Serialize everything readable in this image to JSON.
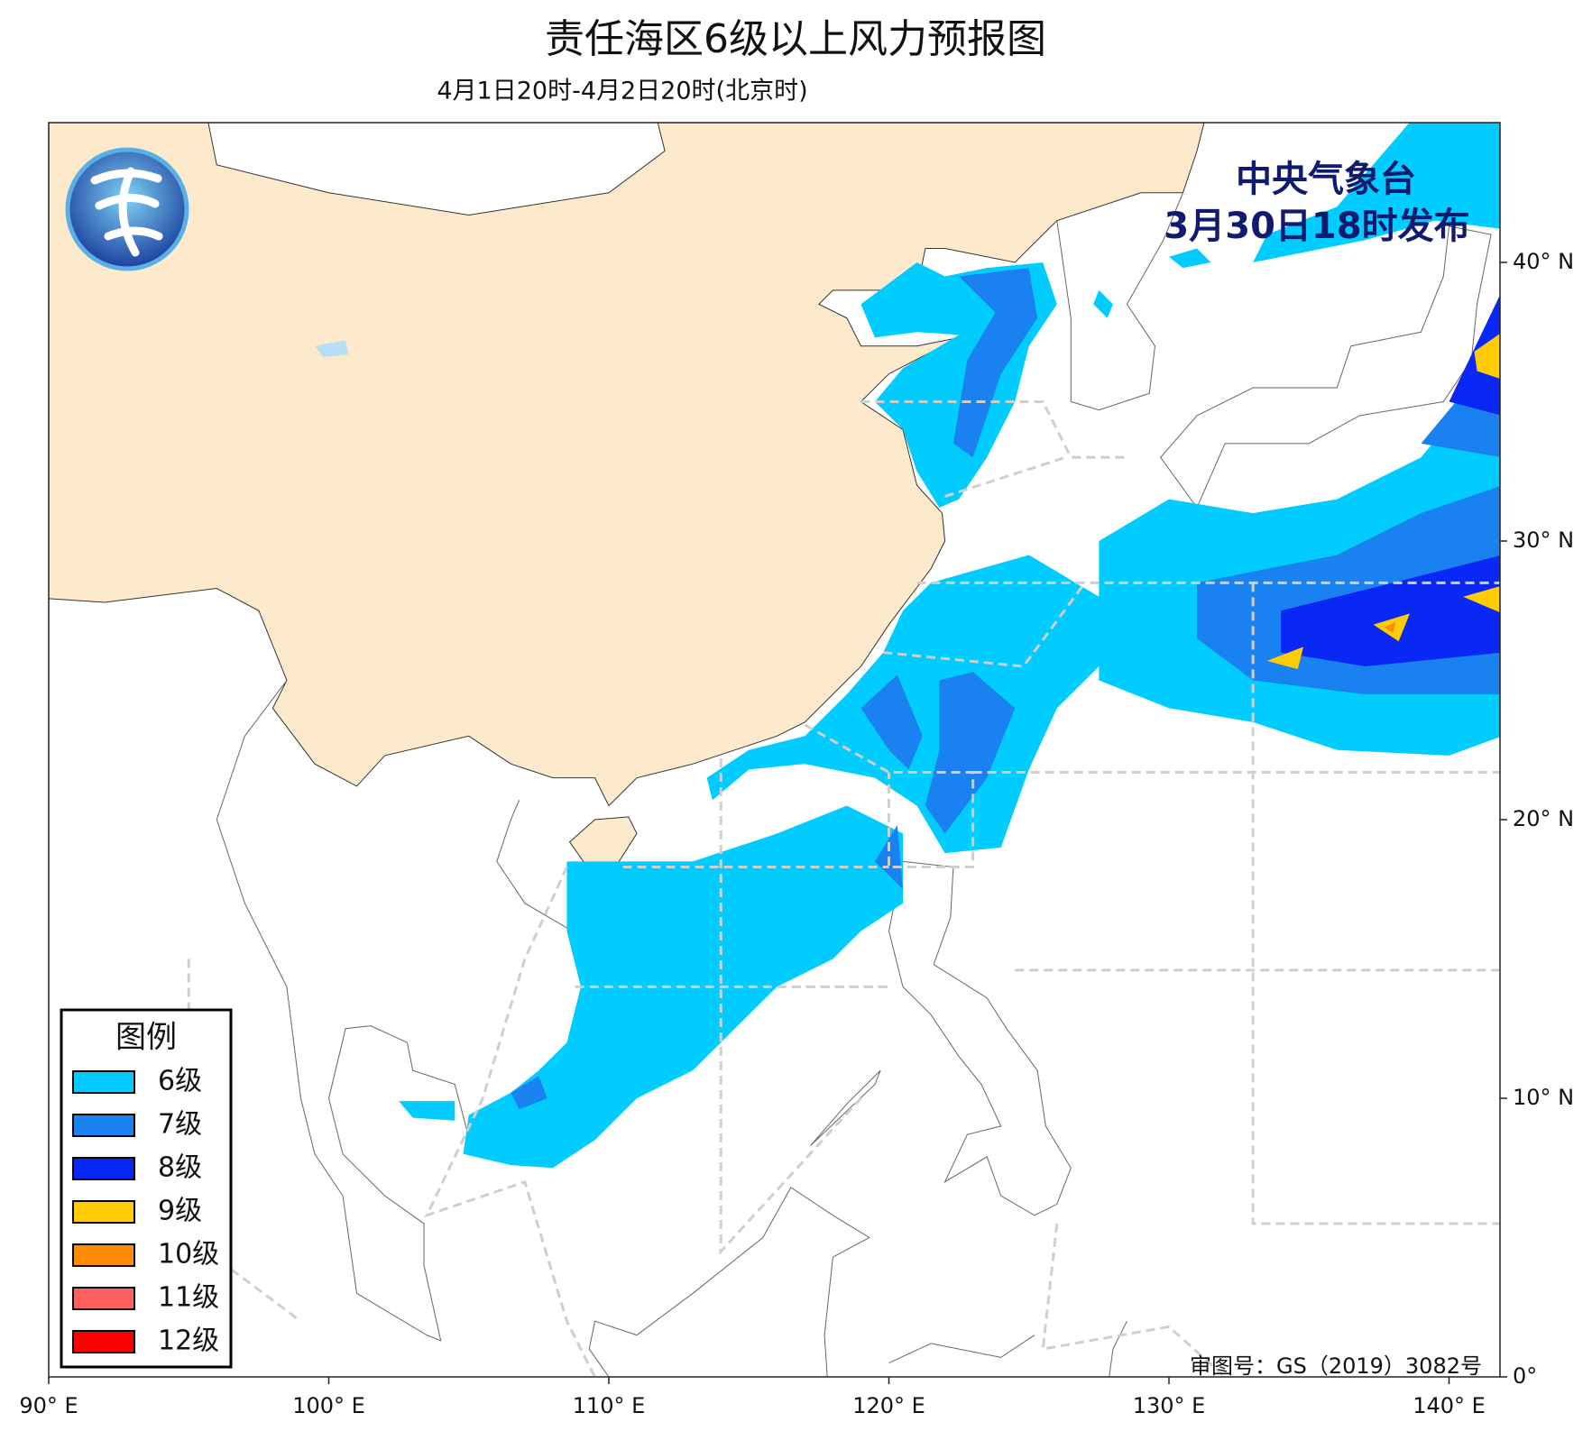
{
  "title": "责任海区6级以上风力预报图",
  "subtitle": "4月1日20时-4月2日20时(北京时)",
  "issuer": [
    "中央气象台",
    "3月30日18时发布"
  ],
  "approval": "审图号：GS（2019）3082号",
  "lon_ticks": [
    {
      "value": 90,
      "label": "90° E"
    },
    {
      "value": 100,
      "label": "100° E"
    },
    {
      "value": 110,
      "label": "110° E"
    },
    {
      "value": 120,
      "label": "120° E"
    },
    {
      "value": 130,
      "label": "130° E"
    },
    {
      "value": 140,
      "label": "140° E"
    }
  ],
  "lat_ticks": [
    {
      "value": 0,
      "label": "0°"
    },
    {
      "value": 10,
      "label": "10° N"
    },
    {
      "value": 20,
      "label": "20° N"
    },
    {
      "value": 30,
      "label": "30° N"
    },
    {
      "value": 40,
      "label": "40° N"
    }
  ],
  "legend": {
    "title": "图例",
    "items": [
      {
        "label": "6级",
        "color": "#00ccff"
      },
      {
        "label": "7级",
        "color": "#1a82f0"
      },
      {
        "label": "8级",
        "color": "#0a28f5"
      },
      {
        "label": "9级",
        "color": "#ffcc00"
      },
      {
        "label": "10级",
        "color": "#ff8c00"
      },
      {
        "label": "11级",
        "color": "#ff6060"
      },
      {
        "label": "12级",
        "color": "#ff0000"
      }
    ]
  }
}
